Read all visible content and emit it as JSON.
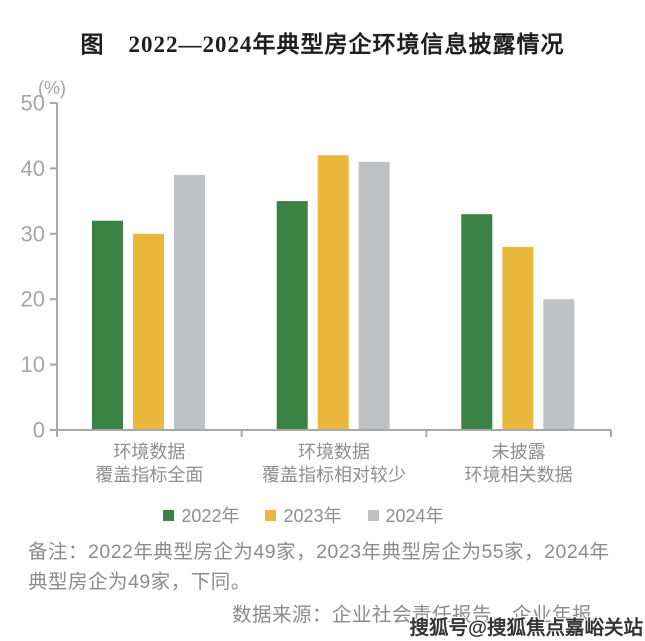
{
  "title": "图　2022—2024年典型房企环境信息披露情况",
  "chart_data": {
    "type": "bar",
    "unit_label": "(%)",
    "categories": [
      [
        "环境数据",
        "覆盖指标全面"
      ],
      [
        "环境数据",
        "覆盖指标相对较少"
      ],
      [
        "未披露",
        "环境相关数据"
      ]
    ],
    "series": [
      {
        "name": "2022年",
        "color": "#3a8144",
        "values": [
          32,
          35,
          33
        ]
      },
      {
        "name": "2023年",
        "color": "#ecb73d",
        "values": [
          30,
          42,
          28
        ]
      },
      {
        "name": "2024年",
        "color": "#bfc1c4",
        "values": [
          39,
          41,
          20
        ]
      }
    ],
    "ylim": [
      0,
      50
    ],
    "yticks": [
      0,
      10,
      20,
      30,
      40,
      50
    ],
    "grid": false,
    "legend_position": "bottom"
  },
  "notes": {
    "remark": "备注：2022年典型房企为49家，2023年典型房企为55家，2024年典型房企为49家，下同。",
    "source": "数据来源：企业社会责任报告、企业年报。"
  },
  "watermark": "搜狐号@搜狐焦点嘉峪关站",
  "palette": {
    "axis": "#a8a8a8",
    "tick_label": "#a6a6a6",
    "category_label": "#8f8f8f",
    "muted_text": "#8c8c8c",
    "title_text": "#1f1f1f",
    "watermark_text": "#353535"
  }
}
